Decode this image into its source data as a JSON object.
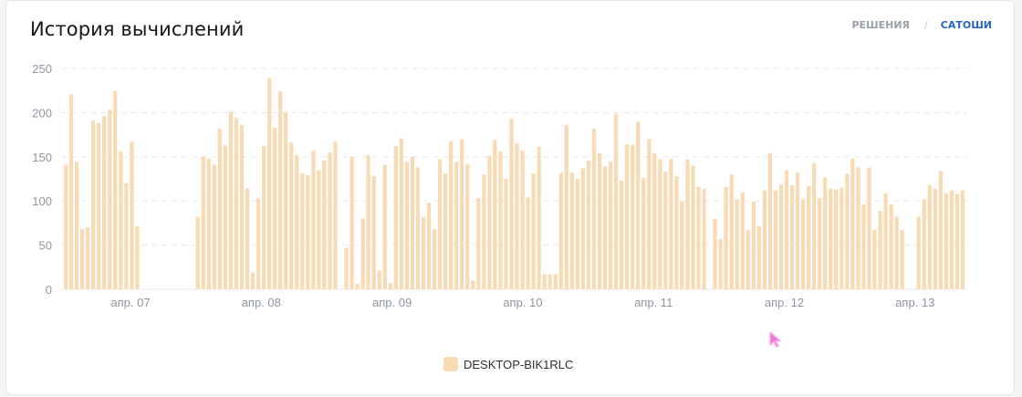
{
  "card": {
    "title": "История вычислений",
    "unit_switch": {
      "option_1": "РЕШЕНИЯ",
      "separator": "/",
      "option_2": "САТОШИ",
      "active": "САТОШИ"
    }
  },
  "colors": {
    "bar": "#f8dbb4",
    "grid": "#e6e8ec",
    "tick_text": "#8e959e",
    "active_link": "#2563c7"
  },
  "chart_data": {
    "type": "bar",
    "y_ticks": [
      0,
      50,
      100,
      150,
      200,
      250
    ],
    "ylim": [
      0,
      250
    ],
    "grid": true,
    "legend_position": "bottom-center",
    "x_tick_labels": [
      "апр. 07",
      "апр. 08",
      "апр. 09",
      "апр. 10",
      "апр. 11",
      "апр. 12",
      "апр. 13"
    ],
    "series": [
      {
        "name": "DESKTOP-BIK1RLC",
        "values": [
          141,
          221,
          144,
          68,
          70,
          191,
          188,
          196,
          203,
          225,
          156,
          120,
          167,
          71,
          0,
          0,
          0,
          0,
          0,
          0,
          0,
          0,
          0,
          0,
          82,
          150,
          148,
          141,
          182,
          163,
          201,
          194,
          186,
          114,
          19,
          103,
          162,
          239,
          183,
          224,
          201,
          166,
          152,
          131,
          129,
          157,
          135,
          146,
          155,
          167,
          0,
          47,
          150,
          6,
          80,
          152,
          128,
          21,
          141,
          7,
          162,
          171,
          144,
          150,
          138,
          82,
          98,
          68,
          147,
          131,
          168,
          144,
          170,
          142,
          10,
          103,
          130,
          151,
          169,
          156,
          125,
          193,
          165,
          157,
          104,
          131,
          161,
          17,
          17,
          17,
          132,
          186,
          132,
          125,
          137,
          146,
          182,
          154,
          139,
          145,
          198,
          123,
          164,
          164,
          190,
          126,
          170,
          154,
          147,
          133,
          148,
          128,
          100,
          147,
          140,
          116,
          114,
          0,
          80,
          57,
          116,
          130,
          102,
          110,
          67,
          99,
          71,
          112,
          154,
          112,
          119,
          135,
          118,
          132,
          102,
          117,
          143,
          103,
          127,
          114,
          113,
          115,
          131,
          148,
          138,
          96,
          138,
          67,
          89,
          109,
          96,
          82,
          67,
          0,
          0,
          82,
          102,
          118,
          114,
          134,
          109,
          112,
          108,
          112
        ]
      }
    ]
  }
}
